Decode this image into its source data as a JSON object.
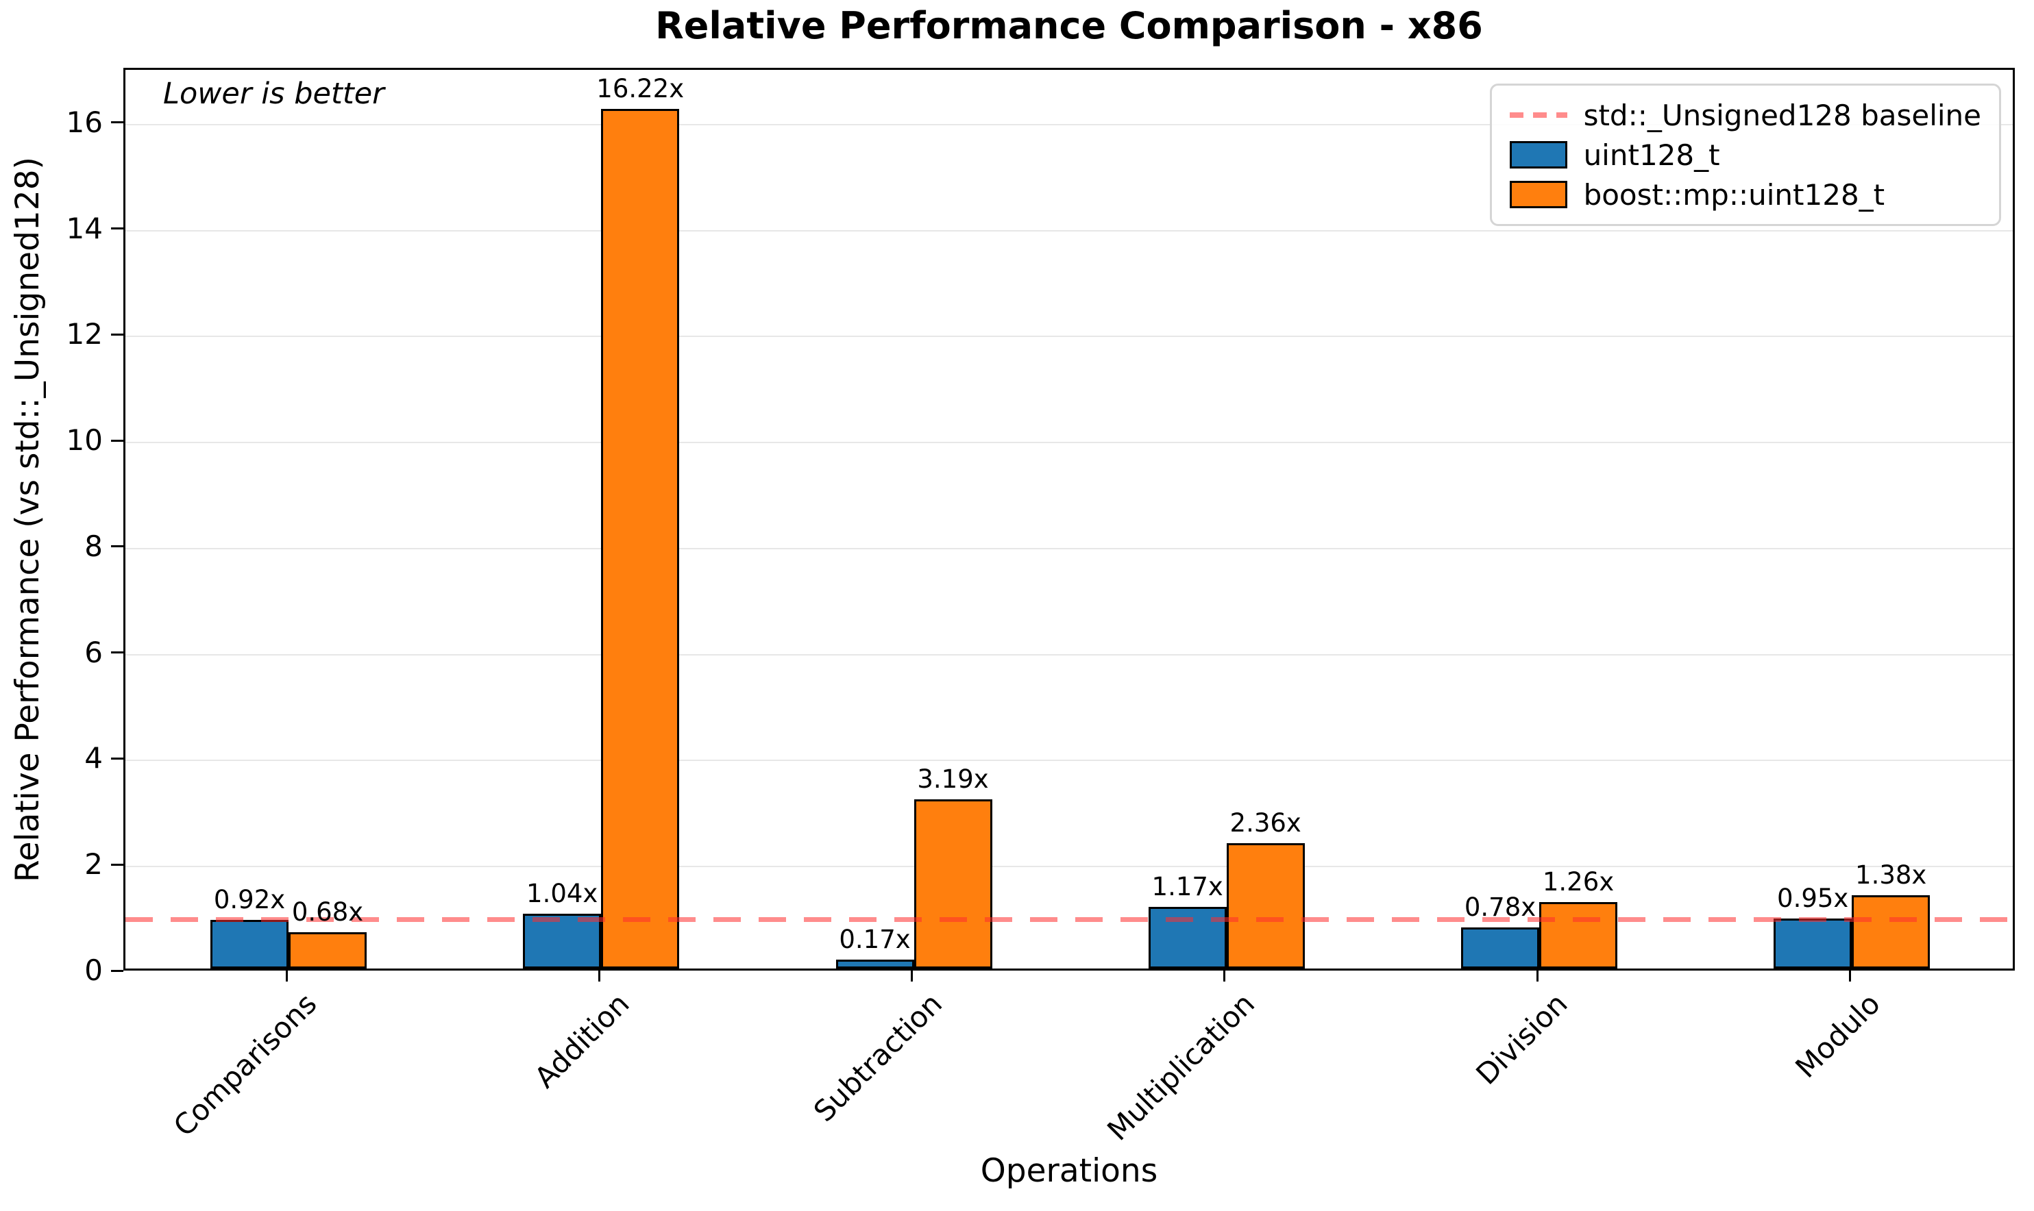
{
  "chart_data": {
    "type": "bar",
    "title": "Relative Performance Comparison - x86",
    "annotation": "Lower is better",
    "xlabel": "Operations",
    "ylabel": "Relative Performance (vs std::_Unsigned128)",
    "categories": [
      "Comparisons",
      "Addition",
      "Subtraction",
      "Multiplication",
      "Division",
      "Modulo"
    ],
    "series": [
      {
        "name": "uint128_t",
        "color": "#1f77b4",
        "values": [
          0.92,
          1.04,
          0.17,
          1.17,
          0.78,
          0.95
        ],
        "labels": [
          "0.92x",
          "1.04x",
          "0.17x",
          "1.17x",
          "0.78x",
          "0.95x"
        ]
      },
      {
        "name": "boost::mp::uint128_t",
        "color": "#ff7f0e",
        "values": [
          0.68,
          16.22,
          3.19,
          2.36,
          1.26,
          1.38
        ],
        "labels": [
          "0.68x",
          "16.22x",
          "3.19x",
          "2.36x",
          "1.26x",
          "1.38x"
        ]
      }
    ],
    "baseline": {
      "value": 1,
      "label": "std::_Unsigned128 baseline",
      "color": "#ff2d2d"
    },
    "yticks": [
      0,
      2,
      4,
      6,
      8,
      10,
      12,
      14,
      16
    ],
    "ylim": [
      0,
      17.03
    ],
    "grid": "horizontal",
    "legend_position": "upper right",
    "grid_color": "#e7e7e7"
  }
}
